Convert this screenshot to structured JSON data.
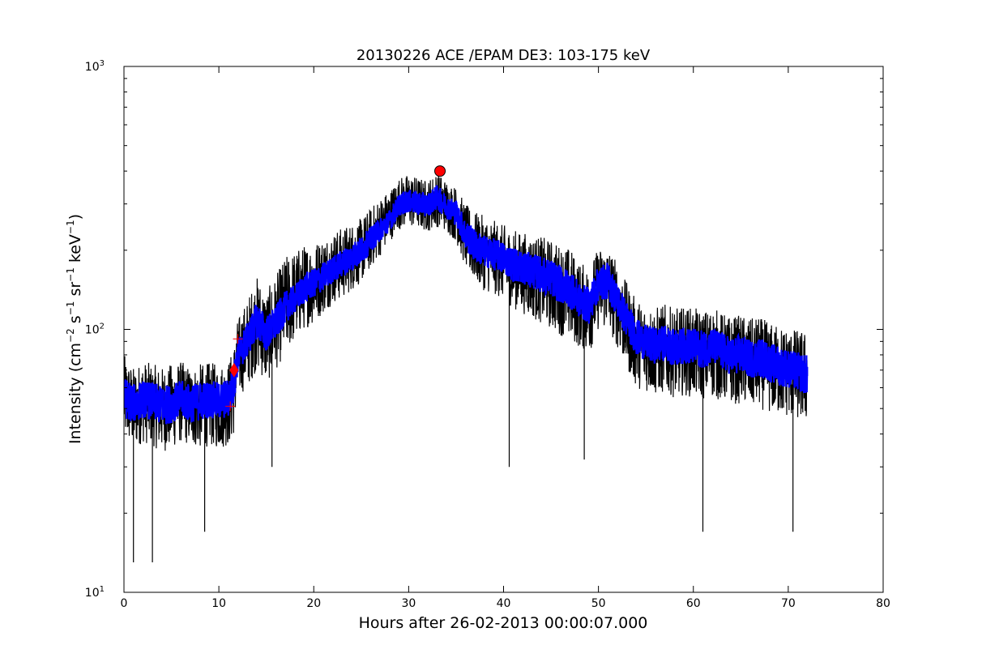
{
  "chart_data": {
    "type": "line",
    "title": "20130226 ACE /EPAM DE3: 103-175 keV",
    "xlabel": "Hours after 26-02-2013 00:00:07.000",
    "ylabel": {
      "prefix": "Intensity (cm",
      "sup1": "−2",
      "mid1": " s",
      "sup2": "−1",
      "mid2": " sr",
      "sup3": "−1",
      "mid3": " keV",
      "sup4": "−1",
      "suffix": ")"
    },
    "xlim": [
      0,
      80
    ],
    "ylim": [
      10,
      1000
    ],
    "yscale": "log",
    "x_ticks": [
      0,
      10,
      20,
      30,
      40,
      50,
      60,
      70,
      80
    ],
    "y_ticks": [
      {
        "value": 10,
        "base": "10",
        "exp": "1"
      },
      {
        "value": 100,
        "base": "10",
        "exp": "2"
      },
      {
        "value": 1000,
        "base": "10",
        "exp": "3"
      }
    ],
    "grid": false,
    "series": [
      {
        "role": "raw",
        "color": "#000000",
        "x": [
          0,
          1,
          2,
          3,
          4,
          5,
          6,
          7,
          8,
          9,
          10,
          11,
          11.5,
          12,
          13,
          14,
          15,
          16,
          17,
          18,
          19,
          20,
          21,
          22,
          23,
          24,
          25,
          26,
          27,
          28,
          29,
          30,
          31,
          32,
          33,
          34,
          35,
          36,
          37,
          38,
          39,
          40,
          41,
          42,
          43,
          44,
          45,
          46,
          47,
          48,
          49,
          50,
          51,
          52,
          53,
          54,
          55,
          56,
          57,
          58,
          59,
          60,
          61,
          62,
          63,
          64,
          65,
          66,
          67,
          68,
          69,
          70,
          71,
          72
        ],
        "y": [
          55,
          52,
          54,
          53,
          51,
          52,
          54,
          52,
          53,
          54,
          53,
          55,
          60,
          78,
          90,
          110,
          95,
          105,
          120,
          130,
          145,
          150,
          160,
          170,
          180,
          190,
          200,
          220,
          240,
          260,
          300,
          310,
          305,
          300,
          320,
          295,
          280,
          230,
          210,
          200,
          195,
          190,
          180,
          175,
          170,
          165,
          160,
          150,
          145,
          130,
          125,
          150,
          155,
          130,
          110,
          95,
          90,
          88,
          90,
          86,
          88,
          87,
          85,
          88,
          84,
          80,
          82,
          78,
          80,
          76,
          74,
          72,
          70,
          68
        ],
        "low": [
          38,
          35,
          37,
          36,
          34,
          35,
          37,
          36,
          35,
          36,
          35,
          36,
          38,
          55,
          60,
          70,
          62,
          70,
          80,
          90,
          100,
          105,
          115,
          125,
          130,
          140,
          150,
          170,
          190,
          215,
          240,
          245,
          240,
          235,
          245,
          235,
          215,
          170,
          150,
          140,
          135,
          130,
          120,
          115,
          110,
          105,
          100,
          95,
          90,
          85,
          80,
          100,
          100,
          85,
          70,
          60,
          58,
          56,
          57,
          55,
          56,
          55,
          54,
          55,
          53,
          52,
          52,
          50,
          50,
          48,
          47,
          46,
          45,
          44
        ],
        "high": [
          80,
          72,
          76,
          74,
          72,
          74,
          76,
          72,
          74,
          75,
          74,
          76,
          85,
          110,
          130,
          160,
          140,
          160,
          190,
          200,
          210,
          215,
          225,
          235,
          245,
          255,
          265,
          290,
          320,
          340,
          380,
          390,
          380,
          370,
          400,
          370,
          350,
          300,
          280,
          270,
          260,
          250,
          240,
          235,
          230,
          225,
          220,
          210,
          205,
          180,
          175,
          205,
          210,
          180,
          150,
          130,
          125,
          122,
          125,
          120,
          122,
          121,
          118,
          122,
          116,
          112,
          114,
          110,
          112,
          106,
          104,
          102,
          100,
          98
        ],
        "spikes_down": [
          [
            1,
            13
          ],
          [
            3,
            13
          ],
          [
            8.5,
            17
          ],
          [
            15.6,
            30
          ],
          [
            40.6,
            30
          ],
          [
            48.5,
            32
          ],
          [
            61,
            17
          ],
          [
            70.5,
            17
          ]
        ]
      },
      {
        "role": "smoothed",
        "color": "#0000ff",
        "x": [
          0,
          1,
          2,
          3,
          4,
          5,
          6,
          7,
          8,
          9,
          10,
          11,
          11.5,
          12,
          13,
          14,
          15,
          16,
          17,
          18,
          19,
          20,
          21,
          22,
          23,
          24,
          25,
          26,
          27,
          28,
          29,
          30,
          31,
          32,
          33,
          34,
          35,
          36,
          37,
          38,
          39,
          40,
          41,
          42,
          43,
          44,
          45,
          46,
          47,
          48,
          49,
          50,
          51,
          52,
          53,
          54,
          55,
          56,
          57,
          58,
          59,
          60,
          61,
          62,
          63,
          64,
          65,
          66,
          67,
          68,
          69,
          70,
          71,
          72
        ],
        "low": [
          46,
          44,
          46,
          45,
          43,
          44,
          46,
          44,
          45,
          46,
          45,
          46,
          50,
          68,
          78,
          92,
          82,
          90,
          105,
          115,
          125,
          132,
          140,
          150,
          158,
          166,
          176,
          196,
          216,
          236,
          270,
          278,
          272,
          268,
          284,
          264,
          248,
          200,
          180,
          172,
          168,
          162,
          152,
          148,
          143,
          138,
          133,
          125,
          120,
          110,
          105,
          128,
          130,
          110,
          92,
          80,
          76,
          74,
          76,
          72,
          74,
          73,
          71,
          74,
          70,
          67,
          68,
          65,
          66,
          63,
          61,
          60,
          58,
          56
        ],
        "high": [
          66,
          62,
          64,
          63,
          61,
          62,
          64,
          62,
          63,
          64,
          63,
          65,
          72,
          92,
          106,
          128,
          112,
          124,
          140,
          148,
          164,
          170,
          180,
          190,
          202,
          214,
          226,
          246,
          266,
          286,
          330,
          340,
          335,
          330,
          355,
          325,
          312,
          262,
          240,
          228,
          222,
          216,
          206,
          200,
          195,
          190,
          185,
          175,
          168,
          150,
          145,
          175,
          180,
          150,
          128,
          110,
          104,
          102,
          104,
          100,
          102,
          101,
          99,
          102,
          98,
          93,
          96,
          91,
          94,
          89,
          87,
          84,
          82,
          80
        ]
      }
    ],
    "markers": [
      {
        "name": "peak-marker",
        "shape": "circle",
        "x": 33.3,
        "y": 400,
        "color": "#ff0000"
      },
      {
        "name": "onset-marker",
        "shape": "diamond",
        "x": 11.6,
        "y": 70,
        "color": "#ff0000"
      },
      {
        "name": "onset-upper-cross",
        "shape": "plus",
        "x": 12.0,
        "y": 92,
        "color": "#ff0000"
      },
      {
        "name": "onset-lower-cross",
        "shape": "plus",
        "x": 11.2,
        "y": 51,
        "color": "#ff0000"
      }
    ]
  }
}
